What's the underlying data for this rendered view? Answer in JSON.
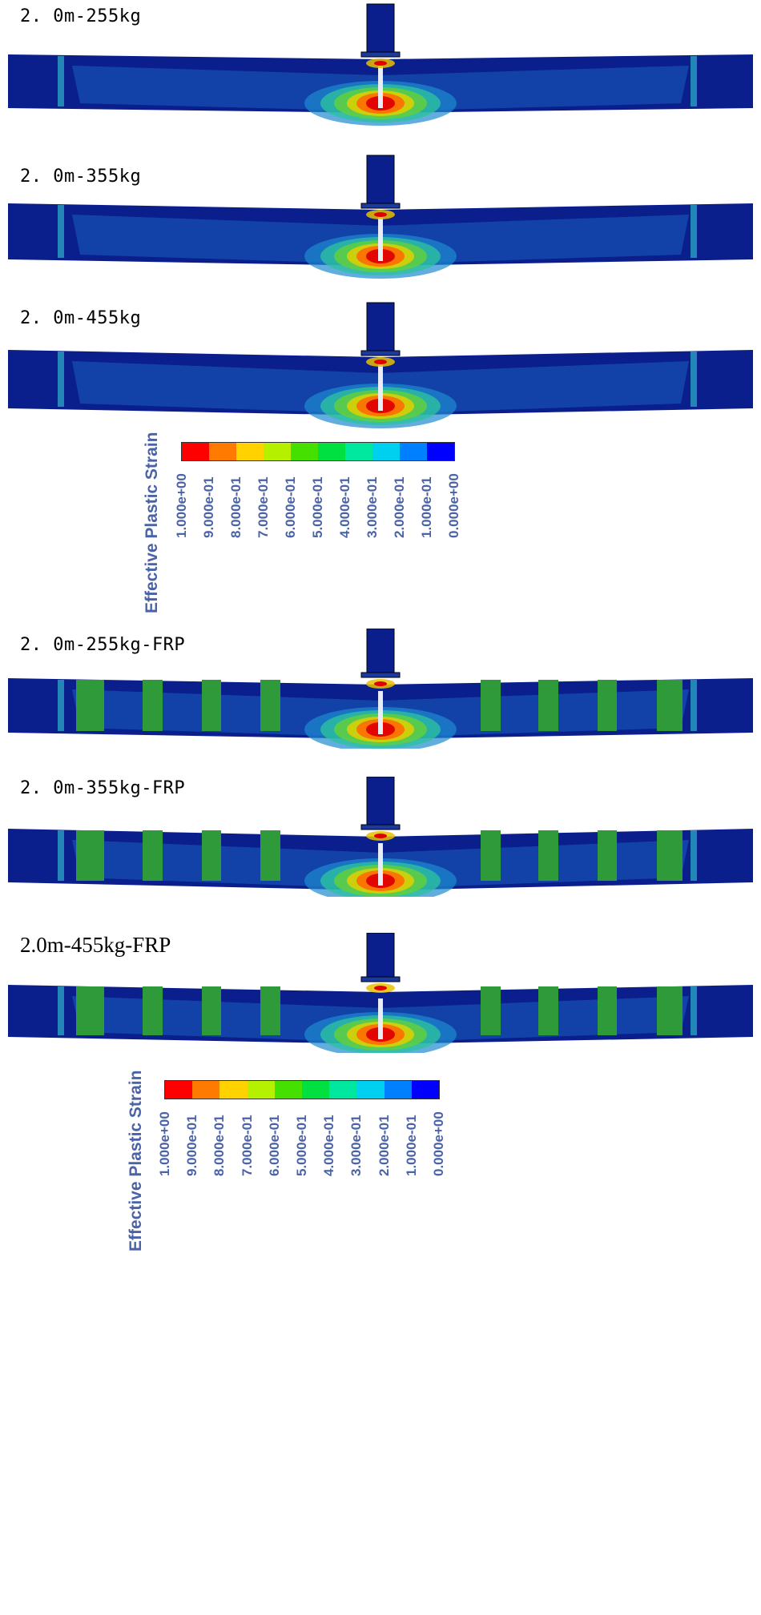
{
  "panels": [
    {
      "label": "2. 0m-255kg",
      "frp": false
    },
    {
      "label": "2. 0m-355kg",
      "frp": false
    },
    {
      "label": "2. 0m-455kg",
      "frp": false
    },
    {
      "label": "2. 0m-255kg-FRP",
      "frp": true
    },
    {
      "label": "2. 0m-355kg-FRP",
      "frp": true
    },
    {
      "label": "2.0m-455kg-FRP",
      "frp": true
    }
  ],
  "legends": [
    {
      "title": "Effective Plastic Strain",
      "ticks": [
        "1.000e+00",
        "9.000e-01",
        "8.000e-01",
        "7.000e-01",
        "6.000e-01",
        "5.000e-01",
        "4.000e-01",
        "3.000e-01",
        "2.000e-01",
        "1.000e-01",
        "0.000e+00"
      ]
    },
    {
      "title": "Effective Plastic Strain",
      "ticks": [
        "1.000e+00",
        "9.000e-01",
        "8.000e-01",
        "7.000e-01",
        "6.000e-01",
        "5.000e-01",
        "4.000e-01",
        "3.000e-01",
        "2.000e-01",
        "1.000e-01",
        "0.000e+00"
      ]
    }
  ],
  "colors": {
    "scale": [
      "#ff0000",
      "#ff7a00",
      "#ffd200",
      "#b4f000",
      "#46e000",
      "#00e040",
      "#00e8a0",
      "#00d0f0",
      "#0080ff",
      "#0000ff"
    ],
    "beam_base": "#0a1f8c",
    "beam_mid": "#1a5fc0",
    "frp": "#2e9a3a",
    "text_legend": "#4a63a8"
  }
}
